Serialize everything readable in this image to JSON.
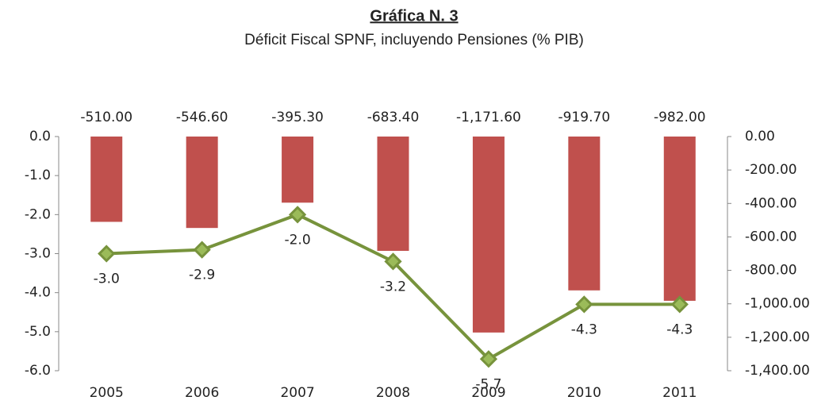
{
  "chart_data": {
    "type": "bar_line",
    "title": "Gráfica N. 3",
    "subtitle": "Déficit Fiscal SPNF, incluyendo Pensiones (% PIB)",
    "categories": [
      "2005",
      "2006",
      "2007",
      "2008",
      "2009",
      "2010",
      "2011"
    ],
    "series": [
      {
        "type": "bar",
        "axis": "y2",
        "color": "#c0504d",
        "values": [
          -510.0,
          -546.6,
          -395.3,
          -683.4,
          -1171.6,
          -919.7,
          -982.0
        ],
        "value_labels": [
          "-510.00",
          "-546.60",
          "-395.30",
          "-683.40",
          "-1,171.60",
          "-919.70",
          "-982.00"
        ]
      },
      {
        "type": "line",
        "axis": "y",
        "color": "#77933c",
        "marker_color": "#9bbb59",
        "values": [
          -3.0,
          -2.9,
          -2.0,
          -3.2,
          -5.7,
          -4.3,
          -4.3
        ],
        "value_labels": [
          "-3.0",
          "-2.9",
          "-2.0",
          "-3.2",
          "-5.7",
          "-4.3",
          "-4.3"
        ]
      }
    ],
    "ylim": [
      -6,
      0
    ],
    "yticks": [
      {
        "value": 0,
        "label": "0.0"
      },
      {
        "value": -1,
        "label": "-1.0"
      },
      {
        "value": -2,
        "label": "-2.0"
      },
      {
        "value": -3,
        "label": "-3.0"
      },
      {
        "value": -4,
        "label": "-4.0"
      },
      {
        "value": -5,
        "label": "-5.0"
      },
      {
        "value": -6,
        "label": "-6.0"
      }
    ],
    "y2lim": [
      -1400,
      0
    ],
    "y2ticks": [
      {
        "value": 0,
        "label": "0.00"
      },
      {
        "value": -200,
        "label": "-200.00"
      },
      {
        "value": -400,
        "label": "-400.00"
      },
      {
        "value": -600,
        "label": "-600.00"
      },
      {
        "value": -800,
        "label": "-800.00"
      },
      {
        "value": -1000,
        "label": "-1,000.00"
      },
      {
        "value": -1200,
        "label": "-1,200.00"
      },
      {
        "value": -1400,
        "label": "-1,400.00"
      }
    ]
  }
}
